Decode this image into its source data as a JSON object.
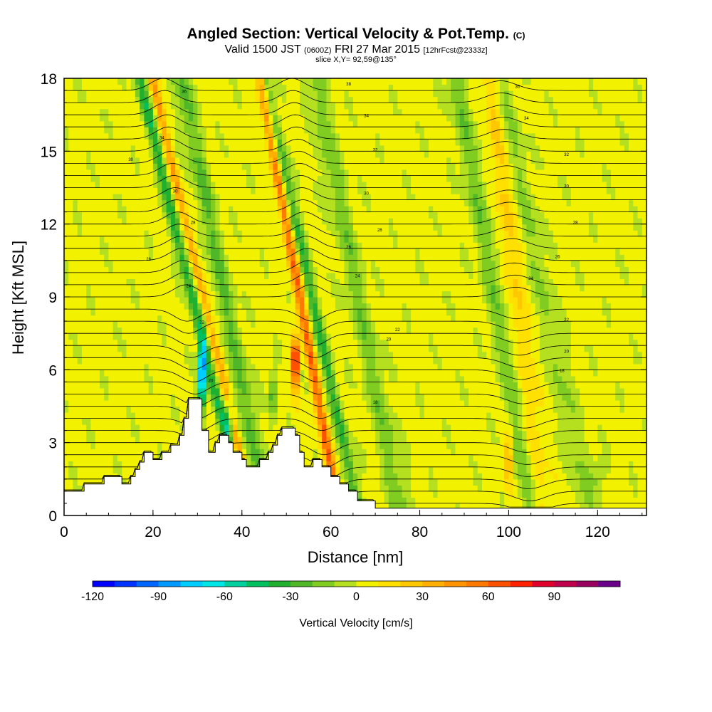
{
  "chart_data": {
    "type": "heatmap",
    "title": "Angled Section: Vertical Velocity & Pot.Temp.",
    "title_suffix": "(C)",
    "subtitle": {
      "valid": "Valid 1500 JST",
      "utc": "(0600Z)",
      "date": "FRI 27 Mar 2015",
      "forecast": "[12hrFcst@2333z]"
    },
    "slice_label": "slice X,Y= 92,59@135°",
    "xlabel": "Distance [nm]",
    "ylabel": "Height [Kft MSL]",
    "xlim": [
      0,
      131
    ],
    "ylim": [
      0,
      18
    ],
    "x_ticks": [
      0,
      20,
      40,
      60,
      80,
      100,
      120
    ],
    "y_ticks": [
      0,
      3,
      6,
      9,
      12,
      15,
      18
    ],
    "colorbar": {
      "title": "Vertical Velocity [cm/s]",
      "min": -120,
      "max": 110,
      "step": 10,
      "tick_values": [
        -120,
        -90,
        -60,
        -30,
        0,
        30,
        60,
        90
      ],
      "colors": [
        "#0000ff",
        "#0033ff",
        "#0066ff",
        "#0099ff",
        "#00ccff",
        "#00e5e5",
        "#00d0a0",
        "#00c060",
        "#20b030",
        "#50b828",
        "#80cc20",
        "#b4e020",
        "#f2f200",
        "#ffe000",
        "#ffc800",
        "#ffb000",
        "#ff9400",
        "#ff7800",
        "#ff5000",
        "#ff2000",
        "#e0002a",
        "#c0004a",
        "#9a0060",
        "#6a008a"
      ]
    },
    "theta_labels": [
      {
        "x": 27,
        "y": 17.4,
        "text": "36"
      },
      {
        "x": 22,
        "y": 15.5,
        "text": "34"
      },
      {
        "x": 15,
        "y": 14.6,
        "text": "30"
      },
      {
        "x": 25,
        "y": 13.3,
        "text": "30"
      },
      {
        "x": 29,
        "y": 12.0,
        "text": "28"
      },
      {
        "x": 19,
        "y": 10.5,
        "text": "26"
      },
      {
        "x": 28,
        "y": 9.4,
        "text": "24"
      },
      {
        "x": 31,
        "y": 7.9,
        "text": "22"
      },
      {
        "x": 33,
        "y": 5.5,
        "text": "20"
      },
      {
        "x": 64,
        "y": 17.7,
        "text": "38"
      },
      {
        "x": 68,
        "y": 16.4,
        "text": "34"
      },
      {
        "x": 70,
        "y": 15.0,
        "text": "32"
      },
      {
        "x": 68,
        "y": 13.2,
        "text": "30"
      },
      {
        "x": 71,
        "y": 11.7,
        "text": "28"
      },
      {
        "x": 64,
        "y": 11.0,
        "text": "26"
      },
      {
        "x": 66,
        "y": 9.8,
        "text": "24"
      },
      {
        "x": 75,
        "y": 7.6,
        "text": "22"
      },
      {
        "x": 73,
        "y": 7.2,
        "text": "20"
      },
      {
        "x": 70,
        "y": 4.6,
        "text": "18"
      },
      {
        "x": 102,
        "y": 17.6,
        "text": "36"
      },
      {
        "x": 104,
        "y": 16.3,
        "text": "34"
      },
      {
        "x": 113,
        "y": 14.8,
        "text": "32"
      },
      {
        "x": 113,
        "y": 13.5,
        "text": "30"
      },
      {
        "x": 115,
        "y": 12.0,
        "text": "28"
      },
      {
        "x": 111,
        "y": 10.6,
        "text": "26"
      },
      {
        "x": 105,
        "y": 9.7,
        "text": "24"
      },
      {
        "x": 113,
        "y": 8.0,
        "text": "22"
      },
      {
        "x": 113,
        "y": 6.7,
        "text": "20"
      },
      {
        "x": 112,
        "y": 5.9,
        "text": "18"
      }
    ]
  }
}
